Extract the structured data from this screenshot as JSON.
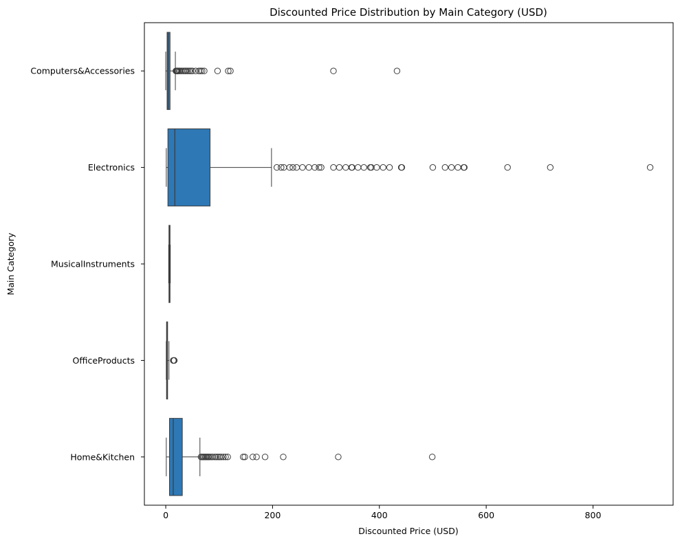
{
  "chart_data": {
    "type": "box",
    "orientation": "horizontal",
    "title": "Discounted Price Distribution by Main Category (USD)",
    "xlabel": "Discounted Price (USD)",
    "ylabel": "Main Category",
    "xlim": [
      -40,
      950
    ],
    "xticks": [
      0,
      200,
      400,
      600,
      800
    ],
    "grid": false,
    "box_color": "#2e78b5",
    "line_color": "#3b3b3b",
    "categories": [
      "Computers&Accessories",
      "Electronics",
      "MusicalInstruments",
      "OfficeProducts",
      "Home&Kitchen"
    ],
    "boxes": [
      {
        "category": "Computers&Accessories",
        "whisker_low": 0,
        "q1": 2.5,
        "median": 4.5,
        "q3": 8,
        "whisker_high": 18,
        "outliers": [
          19,
          20,
          21,
          22,
          23,
          25,
          27,
          30,
          33,
          36,
          38,
          41,
          44,
          47,
          50,
          56,
          62,
          65,
          68,
          72,
          97,
          117,
          121,
          314,
          433
        ]
      },
      {
        "category": "Electronics",
        "whisker_low": 1,
        "q1": 4,
        "median": 17,
        "q3": 83,
        "whisker_high": 198,
        "outliers": [
          208,
          216,
          221,
          232,
          238,
          245,
          256,
          268,
          279,
          287,
          291,
          314,
          325,
          337,
          348,
          349,
          360,
          371,
          383,
          385,
          395,
          407,
          419,
          441,
          442,
          500,
          523,
          535,
          547,
          558,
          559,
          640,
          720,
          907
        ]
      },
      {
        "category": "MusicalInstruments",
        "whisker_low": 5.5,
        "q1": 6,
        "median": 7,
        "q3": 8,
        "whisker_high": 8.5,
        "outliers": []
      },
      {
        "category": "OfficeProducts",
        "whisker_low": 1,
        "q1": 1.5,
        "median": 2,
        "q3": 3.5,
        "whisker_high": 6,
        "outliers": [
          14,
          15,
          16
        ]
      },
      {
        "category": "Home&Kitchen",
        "whisker_low": 1,
        "q1": 7,
        "median": 14,
        "q3": 31,
        "whisker_high": 64,
        "outliers": [
          66,
          68,
          70,
          72,
          74,
          76,
          78,
          80,
          82,
          85,
          88,
          92,
          95,
          98,
          101,
          104,
          108,
          112,
          116,
          145,
          148,
          163,
          170,
          186,
          220,
          323,
          499
        ]
      }
    ]
  }
}
